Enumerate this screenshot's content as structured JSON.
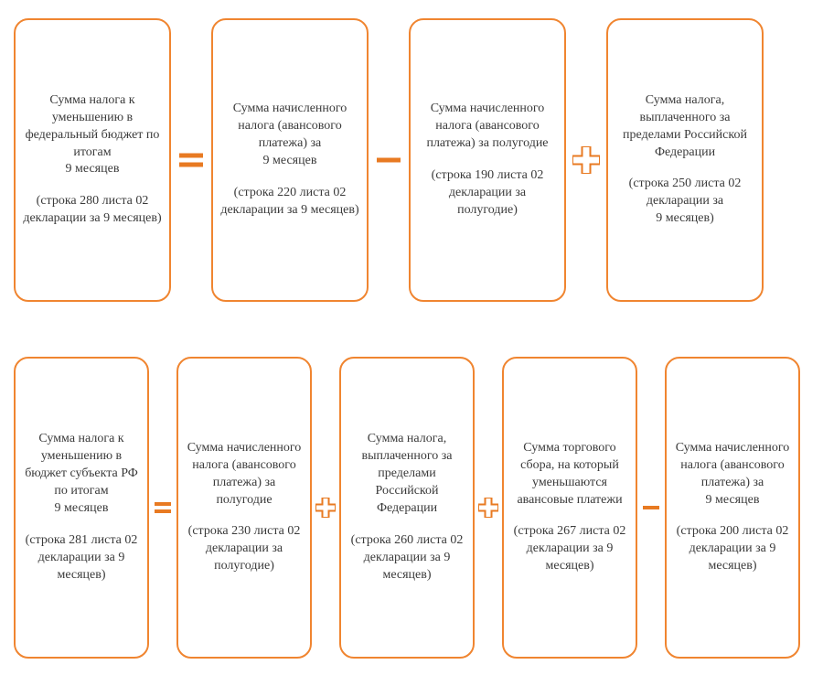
{
  "colors": {
    "border": "#f08530",
    "op": "#e87a22",
    "text": "#3a3a3a"
  },
  "row1": {
    "boxes": [
      {
        "main": "Сумма налога к уменьшению в федеральный бюджет по итогам\n9 месяцев",
        "sub": "(строка 280 листа 02 декларации за 9 месяцев)"
      },
      {
        "main": "Сумма начисленного налога (авансового платежа) за\n9 месяцев",
        "sub": "(строка 220 листа 02 декларации за 9 месяцев)"
      },
      {
        "main": "Сумма начисленного налога (авансового платежа) за полугодие",
        "sub": "(строка 190 листа 02 декларации за полугодие)"
      },
      {
        "main": "Сумма налога, выплаченного за пределами Российской Федерации",
        "sub": "(строка 250 листа 02 декларации за\n9 месяцев)"
      }
    ],
    "ops": [
      "equals",
      "minus",
      "plus"
    ]
  },
  "row2": {
    "boxes": [
      {
        "main": "Сумма налога к уменьшению в  бюджет субъекта РФ по итогам\n9 месяцев",
        "sub": "(строка 281 листа 02 декларации за 9 месяцев)"
      },
      {
        "main": "Сумма начисленного налога (авансового платежа) за полугодие",
        "sub": "(строка 230 листа 02 декларации за полугодие)"
      },
      {
        "main": "Сумма налога, выплаченного за пределами Российской Федерации",
        "sub": "(строка 260 листа 02 декларации за 9 месяцев)"
      },
      {
        "main": "Сумма торгового сбора, на который уменьшаются авансовые платежи",
        "sub": "(строка 267 листа 02 декларации за 9 месяцев)"
      },
      {
        "main": "Сумма начисленного налога (авансового платежа) за\n9 месяцев",
        "sub": "(строка 200 листа 02 декларации за 9 месяцев)"
      }
    ],
    "ops": [
      "equals-small",
      "plus-small",
      "plus-small",
      "minus-small"
    ]
  }
}
